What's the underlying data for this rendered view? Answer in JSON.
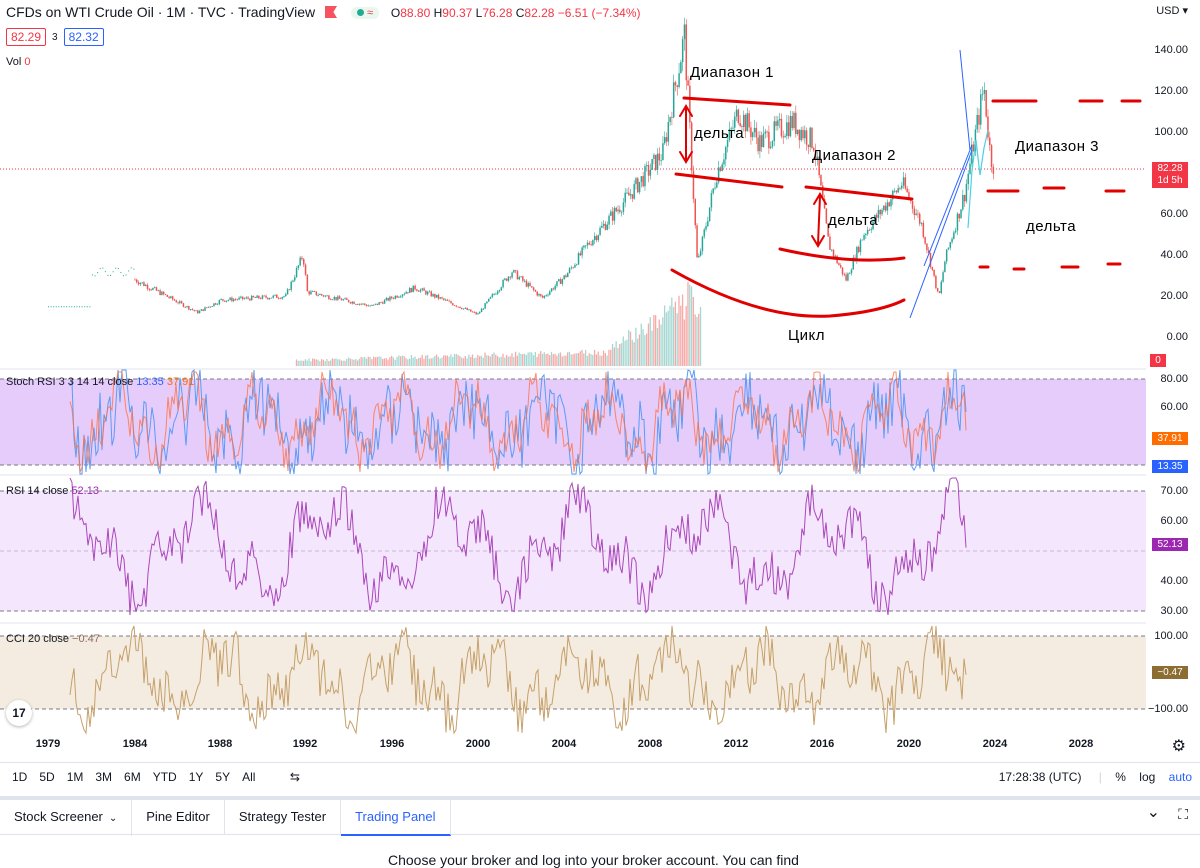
{
  "header": {
    "title": "CFDs on WTI Crude Oil · 1M · TVC · TradingView",
    "ohlc": {
      "o_lbl": "O",
      "o": "88.80",
      "h_lbl": "H",
      "h": "90.37",
      "l_lbl": "L",
      "l": "76.28",
      "c_lbl": "C",
      "c": "82.28",
      "chg": "−6.51 (−7.34%)"
    },
    "bid": "82.29",
    "spread": "3",
    "ask": "82.32",
    "vol_label": "Vol",
    "vol_value": "0",
    "currency": "USD"
  },
  "price_axis": [
    "140.00",
    "120.00",
    "100.00",
    "80.00",
    "60.00",
    "40.00",
    "20.00",
    "0.00"
  ],
  "price_badge": {
    "value": "82.28",
    "countdown": "1d 5h"
  },
  "vol_badge": "0",
  "stoch": {
    "label": "Stoch RSI 3 3 14 14 close",
    "k": "13.35",
    "d": "37.91",
    "axis": [
      "80.00",
      "60.00"
    ],
    "badge_d": "37.91",
    "badge_k": "13.35"
  },
  "rsi": {
    "label": "RSI 14 close",
    "value": "52.13",
    "axis": [
      "70.00",
      "60.00",
      "50.00",
      "40.00",
      "30.00"
    ],
    "badge": "52.13"
  },
  "cci": {
    "label": "CCI 20 close",
    "value": "−0.47",
    "axis": [
      "100.00",
      "−100.00"
    ],
    "badge": "−0.47"
  },
  "annotations": {
    "range1": "Диапазон 1",
    "range2": "Диапазон 2",
    "range3": "Диапазон 3",
    "delta1": "дельта",
    "delta2": "дельта",
    "delta3": "дельта",
    "cycle": "Цикл"
  },
  "x_axis": [
    "1979",
    "1984",
    "1988",
    "1992",
    "1996",
    "2000",
    "2004",
    "2008",
    "2012",
    "2016",
    "2020",
    "2024",
    "2028"
  ],
  "toolbar": {
    "ranges": [
      "1D",
      "5D",
      "1M",
      "3M",
      "6M",
      "YTD",
      "1Y",
      "5Y",
      "All"
    ],
    "time": "17:28:38 (UTC)",
    "pct": "%",
    "log": "log",
    "auto": "auto"
  },
  "bottom_tabs": [
    "Stock Screener",
    "Pine Editor",
    "Strategy Tester",
    "Trading Panel"
  ],
  "panel_text": "Choose your broker and log into your broker account. You can find",
  "colors": {
    "up": "#26a69a",
    "down": "#ef5350",
    "stoch_bg": "#e1c5fa",
    "rsi_bg": "#f3e5fc",
    "cci_bg": "#f3ebdd",
    "annot_red": "#e00000",
    "accent": "#2962ff"
  },
  "chart_data": {
    "type": "line",
    "title": "CFDs on WTI Crude Oil · 1M · TVC",
    "x": [
      "1979",
      "1984",
      "1988",
      "1992",
      "1996",
      "2000",
      "2004",
      "2008",
      "2012",
      "2016",
      "2020",
      "2024"
    ],
    "series": [
      {
        "name": "WTI Crude Oil",
        "values": [
          null,
          30,
          16,
          20,
          20,
          20,
          35,
          95,
          100,
          40,
          25,
          82.28
        ]
      }
    ],
    "ylim": [
      0,
      145
    ],
    "ylabel": "USD"
  }
}
